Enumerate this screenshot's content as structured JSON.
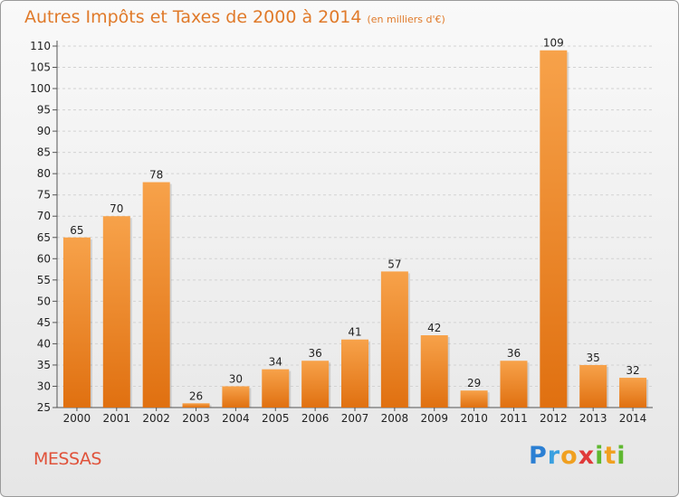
{
  "header": {
    "title": "Autres Impôts et Taxes de 2000 à 2014",
    "unit": "(en milliers d'€)"
  },
  "footer": {
    "location": "MESSAS",
    "logo_text": "Proxiti"
  },
  "colors": {
    "bar_top": "#f7a24a",
    "bar_bottom": "#e07010",
    "title": "#e07a2a",
    "location": "#e0523a"
  },
  "chart_data": {
    "type": "bar",
    "title": "Autres Impôts et Taxes de 2000 à 2014",
    "xlabel": "",
    "ylabel": "",
    "categories": [
      "2000",
      "2001",
      "2002",
      "2003",
      "2004",
      "2005",
      "2006",
      "2007",
      "2008",
      "2009",
      "2010",
      "2011",
      "2012",
      "2013",
      "2014"
    ],
    "values": [
      65,
      70,
      78,
      26,
      30,
      34,
      36,
      41,
      57,
      42,
      29,
      36,
      109,
      35,
      32
    ],
    "ylim": [
      25,
      110
    ],
    "yticks": [
      25,
      30,
      35,
      40,
      45,
      50,
      55,
      60,
      65,
      70,
      75,
      80,
      85,
      90,
      95,
      100,
      105,
      110
    ],
    "grid": true
  }
}
